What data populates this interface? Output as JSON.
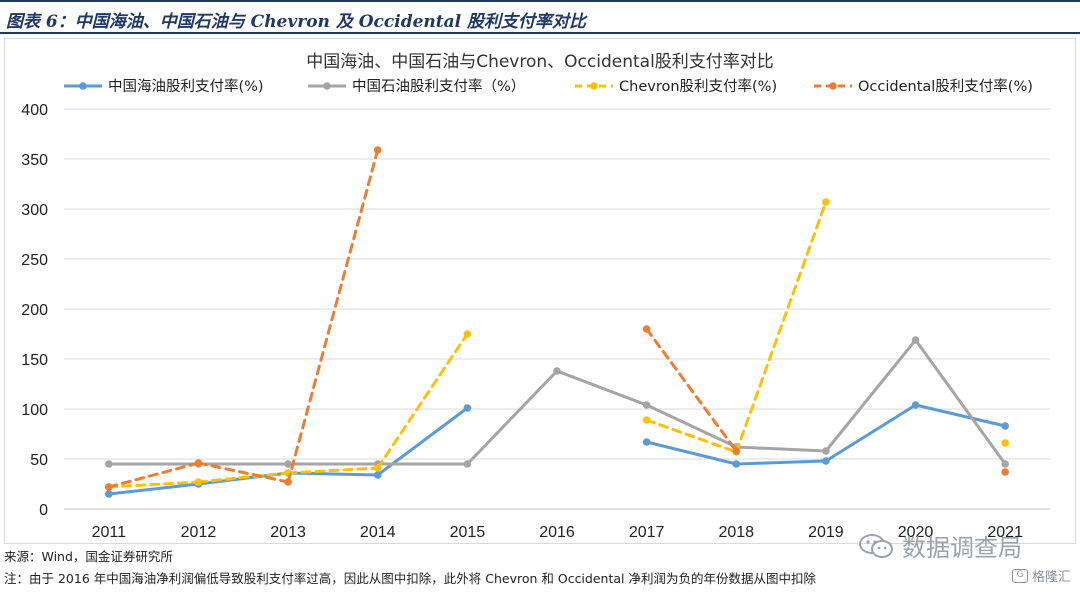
{
  "header": {
    "title": "图表 6：中国海油、中国石油与 Chevron 及 Occidental 股利支付率对比"
  },
  "footer": {
    "source": "来源：Wind，国金证券研究所",
    "note": "注：由于 2016 年中国海油净利润偏低导致股利支付率过高，因此从图中扣除，此外将 Chevron 和 Occidental 净利润为负的年份数据从图中扣除"
  },
  "watermark": {
    "primary": "数据调查局",
    "secondary": "格隆汇",
    "icon": "wechat-icon"
  },
  "chart_data": {
    "type": "line",
    "title": "中国海油、中国石油与Chevron、Occidental股利支付率对比",
    "xlabel": "",
    "ylabel": "",
    "categories": [
      "2011",
      "2012",
      "2013",
      "2014",
      "2015",
      "2016",
      "2017",
      "2018",
      "2019",
      "2020",
      "2021"
    ],
    "ylim": [
      0,
      400
    ],
    "yticks": [
      "0",
      "50",
      "100",
      "150",
      "200",
      "250",
      "300",
      "350",
      "400"
    ],
    "grid": true,
    "legend_position": "top",
    "series": [
      {
        "name": "中国海油股利支付率(%)",
        "color": "#5b9bd5",
        "dash": "solid",
        "values": [
          15,
          25,
          36,
          34,
          101,
          null,
          67,
          45,
          48,
          104,
          83
        ]
      },
      {
        "name": "中国石油股利支付率（%）",
        "color": "#a5a5a5",
        "dash": "solid",
        "values": [
          45,
          45,
          45,
          45,
          45,
          138,
          104,
          62,
          58,
          169,
          45
        ]
      },
      {
        "name": "Chevron股利支付率(%)",
        "color": "#ffc000",
        "dash": "dashed",
        "values": [
          22,
          27,
          36,
          41,
          175,
          null,
          89,
          57,
          307,
          null,
          66
        ]
      },
      {
        "name": "Occidental股利支付率(%)",
        "color": "#ed7d31",
        "dash": "dashed",
        "values": [
          22,
          46,
          27,
          359,
          null,
          null,
          180,
          58,
          null,
          null,
          37
        ]
      }
    ]
  }
}
